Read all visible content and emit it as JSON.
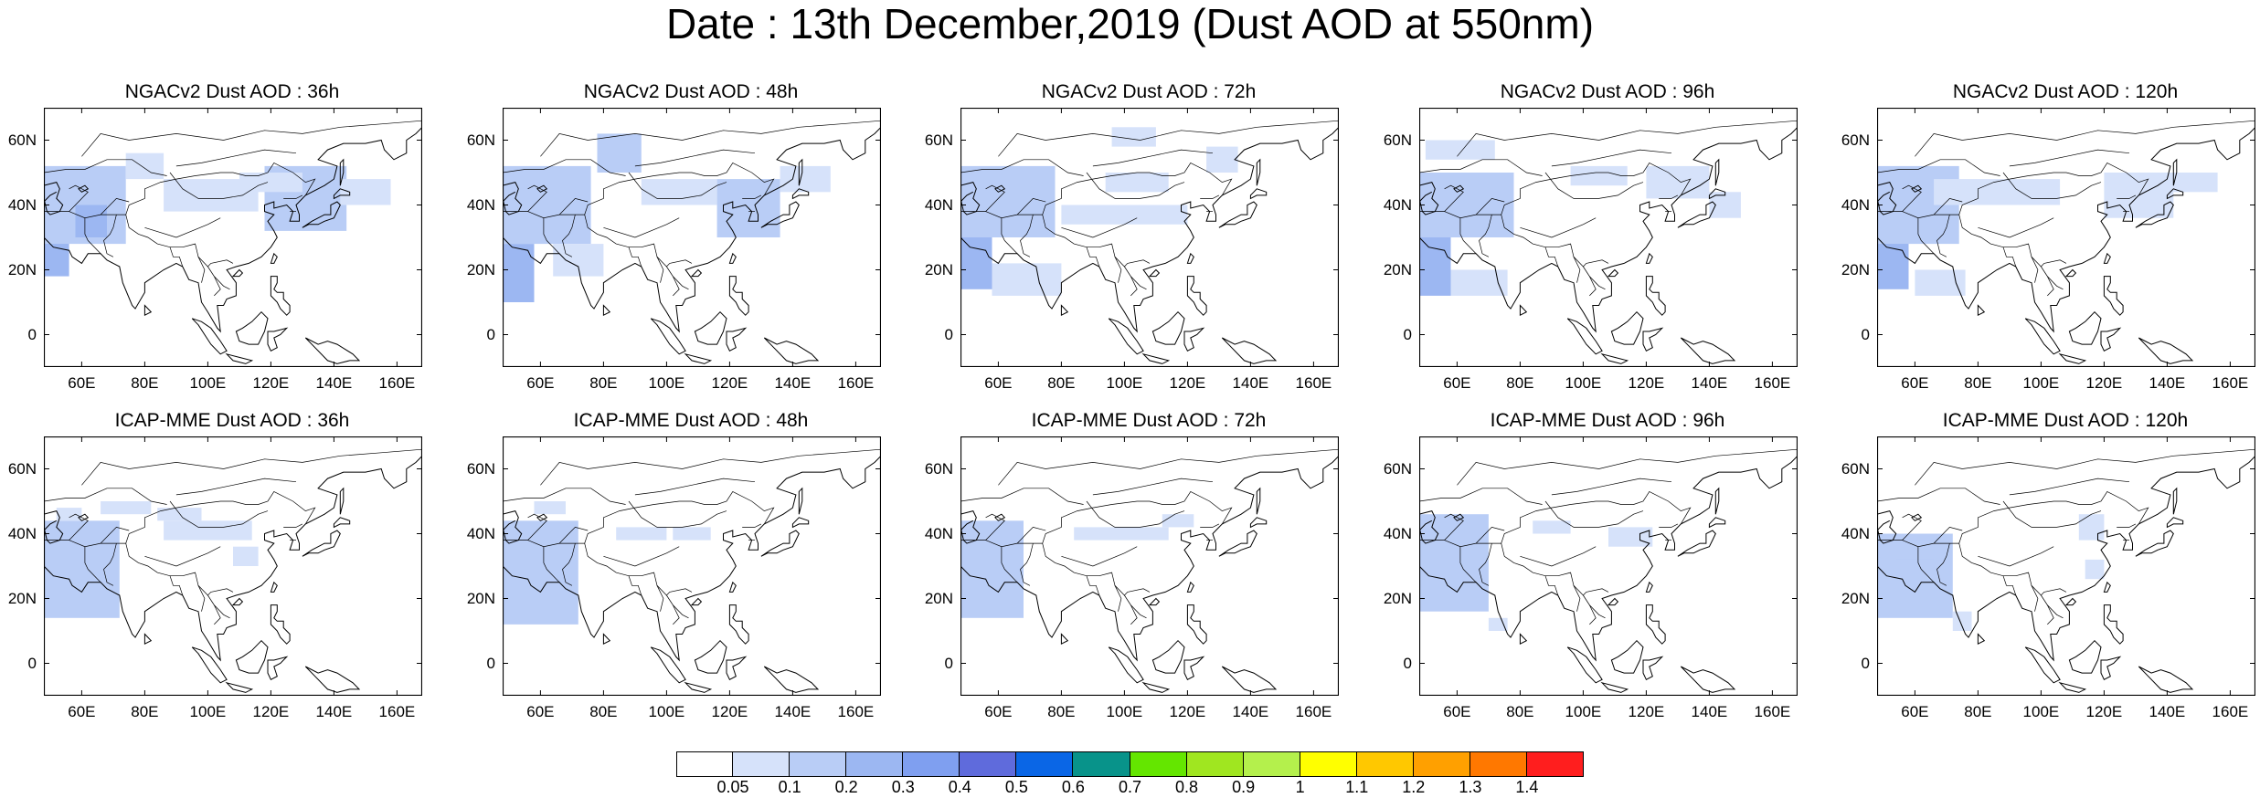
{
  "title": "Date : 13th December,2019 (Dust AOD at 550nm)",
  "map_extent": {
    "lon": [
      48,
      168
    ],
    "lat": [
      -10,
      70
    ]
  },
  "lat_ticks": [
    "60N",
    "40N",
    "20N",
    "0"
  ],
  "lon_ticks": [
    "60E",
    "80E",
    "100E",
    "120E",
    "140E",
    "160E"
  ],
  "panels": [
    {
      "title": "NGACv2 Dust AOD : 36h",
      "model": "NGACv2",
      "lead": "36h",
      "dust": [
        {
          "lon": 48,
          "lat": 18,
          "w": 8,
          "h": 12,
          "level": 3
        },
        {
          "lon": 48,
          "lat": 28,
          "w": 26,
          "h": 24,
          "level": 2
        },
        {
          "lon": 58,
          "lat": 30,
          "w": 10,
          "h": 10,
          "level": 3
        },
        {
          "lon": 74,
          "lat": 48,
          "w": 12,
          "h": 8,
          "level": 1
        },
        {
          "lon": 86,
          "lat": 38,
          "w": 30,
          "h": 10,
          "level": 1
        },
        {
          "lon": 118,
          "lat": 32,
          "w": 26,
          "h": 20,
          "level": 2
        },
        {
          "lon": 142,
          "lat": 40,
          "w": 16,
          "h": 8,
          "level": 1
        },
        {
          "lon": 110,
          "lat": 44,
          "w": 20,
          "h": 6,
          "level": 1
        }
      ]
    },
    {
      "title": "NGACv2 Dust AOD : 48h",
      "model": "NGACv2",
      "lead": "48h",
      "dust": [
        {
          "lon": 48,
          "lat": 10,
          "w": 10,
          "h": 18,
          "level": 3
        },
        {
          "lon": 48,
          "lat": 28,
          "w": 28,
          "h": 24,
          "level": 2
        },
        {
          "lon": 78,
          "lat": 50,
          "w": 14,
          "h": 12,
          "level": 2
        },
        {
          "lon": 64,
          "lat": 18,
          "w": 16,
          "h": 10,
          "level": 1
        },
        {
          "lon": 92,
          "lat": 40,
          "w": 24,
          "h": 8,
          "level": 1
        },
        {
          "lon": 116,
          "lat": 30,
          "w": 20,
          "h": 18,
          "level": 2
        },
        {
          "lon": 136,
          "lat": 44,
          "w": 16,
          "h": 8,
          "level": 1
        }
      ]
    },
    {
      "title": "NGACv2 Dust AOD : 72h",
      "model": "NGACv2",
      "lead": "72h",
      "dust": [
        {
          "lon": 48,
          "lat": 14,
          "w": 10,
          "h": 16,
          "level": 3
        },
        {
          "lon": 48,
          "lat": 30,
          "w": 30,
          "h": 22,
          "level": 2
        },
        {
          "lon": 58,
          "lat": 12,
          "w": 22,
          "h": 10,
          "level": 1
        },
        {
          "lon": 96,
          "lat": 58,
          "w": 14,
          "h": 6,
          "level": 1
        },
        {
          "lon": 80,
          "lat": 34,
          "w": 40,
          "h": 6,
          "level": 1
        },
        {
          "lon": 126,
          "lat": 50,
          "w": 10,
          "h": 8,
          "level": 1
        },
        {
          "lon": 94,
          "lat": 44,
          "w": 20,
          "h": 6,
          "level": 1
        }
      ]
    },
    {
      "title": "NGACv2 Dust AOD : 96h",
      "model": "NGACv2",
      "lead": "96h",
      "dust": [
        {
          "lon": 48,
          "lat": 12,
          "w": 10,
          "h": 18,
          "level": 3
        },
        {
          "lon": 48,
          "lat": 30,
          "w": 30,
          "h": 20,
          "level": 2
        },
        {
          "lon": 50,
          "lat": 54,
          "w": 22,
          "h": 6,
          "level": 1
        },
        {
          "lon": 58,
          "lat": 12,
          "w": 18,
          "h": 8,
          "level": 1
        },
        {
          "lon": 120,
          "lat": 42,
          "w": 20,
          "h": 10,
          "level": 1
        },
        {
          "lon": 96,
          "lat": 46,
          "w": 18,
          "h": 6,
          "level": 1
        },
        {
          "lon": 140,
          "lat": 36,
          "w": 10,
          "h": 8,
          "level": 1
        }
      ]
    },
    {
      "title": "NGACv2 Dust AOD : 120h",
      "model": "NGACv2",
      "lead": "120h",
      "dust": [
        {
          "lon": 48,
          "lat": 14,
          "w": 10,
          "h": 16,
          "level": 3
        },
        {
          "lon": 48,
          "lat": 28,
          "w": 26,
          "h": 24,
          "level": 2
        },
        {
          "lon": 60,
          "lat": 12,
          "w": 16,
          "h": 8,
          "level": 1
        },
        {
          "lon": 66,
          "lat": 40,
          "w": 40,
          "h": 8,
          "level": 1
        },
        {
          "lon": 120,
          "lat": 36,
          "w": 22,
          "h": 14,
          "level": 1
        },
        {
          "lon": 142,
          "lat": 44,
          "w": 14,
          "h": 6,
          "level": 1
        }
      ]
    },
    {
      "title": "ICAP-MME Dust AOD : 36h",
      "model": "ICAP-MME",
      "lead": "36h",
      "dust": [
        {
          "lon": 48,
          "lat": 18,
          "w": 8,
          "h": 16,
          "level": 3
        },
        {
          "lon": 48,
          "lat": 14,
          "w": 24,
          "h": 30,
          "level": 2
        },
        {
          "lon": 52,
          "lat": 44,
          "w": 8,
          "h": 4,
          "level": 1
        },
        {
          "lon": 66,
          "lat": 46,
          "w": 16,
          "h": 4,
          "level": 1
        },
        {
          "lon": 86,
          "lat": 38,
          "w": 28,
          "h": 6,
          "level": 1
        },
        {
          "lon": 84,
          "lat": 44,
          "w": 14,
          "h": 4,
          "level": 1
        },
        {
          "lon": 108,
          "lat": 30,
          "w": 8,
          "h": 6,
          "level": 1
        }
      ]
    },
    {
      "title": "ICAP-MME Dust AOD : 48h",
      "model": "ICAP-MME",
      "lead": "48h",
      "dust": [
        {
          "lon": 48,
          "lat": 16,
          "w": 8,
          "h": 18,
          "level": 3
        },
        {
          "lon": 48,
          "lat": 12,
          "w": 24,
          "h": 32,
          "level": 2
        },
        {
          "lon": 58,
          "lat": 46,
          "w": 10,
          "h": 4,
          "level": 1
        },
        {
          "lon": 84,
          "lat": 38,
          "w": 16,
          "h": 4,
          "level": 1
        },
        {
          "lon": 102,
          "lat": 38,
          "w": 12,
          "h": 4,
          "level": 1
        }
      ]
    },
    {
      "title": "ICAP-MME Dust AOD : 72h",
      "model": "ICAP-MME",
      "lead": "72h",
      "dust": [
        {
          "lon": 48,
          "lat": 20,
          "w": 8,
          "h": 22,
          "level": 3
        },
        {
          "lon": 48,
          "lat": 14,
          "w": 20,
          "h": 30,
          "level": 2
        },
        {
          "lon": 84,
          "lat": 38,
          "w": 30,
          "h": 4,
          "level": 1
        },
        {
          "lon": 112,
          "lat": 42,
          "w": 10,
          "h": 4,
          "level": 1
        }
      ]
    },
    {
      "title": "ICAP-MME Dust AOD : 96h",
      "model": "ICAP-MME",
      "lead": "96h",
      "dust": [
        {
          "lon": 48,
          "lat": 20,
          "w": 10,
          "h": 22,
          "level": 3
        },
        {
          "lon": 48,
          "lat": 16,
          "w": 22,
          "h": 30,
          "level": 2
        },
        {
          "lon": 84,
          "lat": 40,
          "w": 12,
          "h": 4,
          "level": 1
        },
        {
          "lon": 108,
          "lat": 36,
          "w": 14,
          "h": 6,
          "level": 1
        },
        {
          "lon": 70,
          "lat": 10,
          "w": 6,
          "h": 4,
          "level": 1
        }
      ]
    },
    {
      "title": "ICAP-MME Dust AOD : 120h",
      "model": "ICAP-MME",
      "lead": "120h",
      "dust": [
        {
          "lon": 48,
          "lat": 20,
          "w": 8,
          "h": 18,
          "level": 3
        },
        {
          "lon": 48,
          "lat": 14,
          "w": 24,
          "h": 26,
          "level": 2
        },
        {
          "lon": 54,
          "lat": 32,
          "w": 12,
          "h": 6,
          "level": 2
        },
        {
          "lon": 112,
          "lat": 38,
          "w": 8,
          "h": 8,
          "level": 1
        },
        {
          "lon": 114,
          "lat": 26,
          "w": 6,
          "h": 6,
          "level": 1
        },
        {
          "lon": 72,
          "lat": 10,
          "w": 6,
          "h": 6,
          "level": 1
        }
      ]
    }
  ],
  "colorbar": {
    "labels": [
      "0.05",
      "0.1",
      "0.2",
      "0.3",
      "0.4",
      "0.5",
      "0.6",
      "0.7",
      "0.8",
      "0.9",
      "1",
      "1.1",
      "1.2",
      "1.3",
      "1.4"
    ],
    "colors": [
      "#ffffff",
      "#d6e2fa",
      "#b9cdf6",
      "#9cb7f2",
      "#7f9ff0",
      "#5f6bdc",
      "#0a66e6",
      "#08938a",
      "#64e600",
      "#a0e620",
      "#b4f04c",
      "#ffff00",
      "#ffc800",
      "#ffa000",
      "#ff7800",
      "#ff1e1e"
    ]
  }
}
